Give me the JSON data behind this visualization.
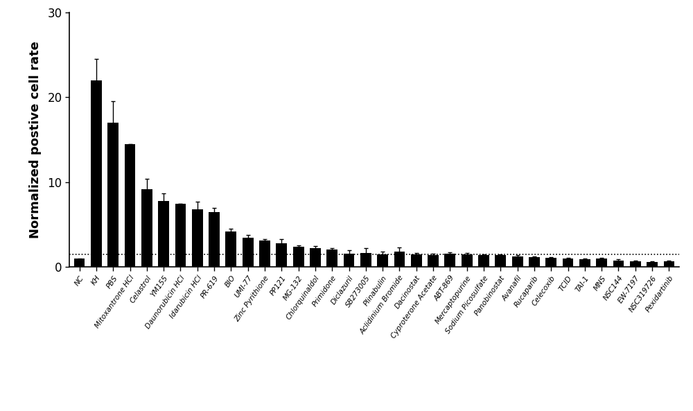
{
  "categories": [
    "NC",
    "KH",
    "PBS",
    "Mitoxantrone HCl",
    "Celastrol",
    "YM155",
    "Daunorubicin HCl",
    "Idarubicin HCl",
    "PR-619",
    "BIO",
    "UMI-77",
    "Zinc Pyrithione",
    "PP121",
    "MG-132",
    "Chlorquinaldol",
    "Primidone",
    "Diclazuril",
    "SB273005",
    "Plinabulin",
    "Aclidinium Bromide",
    "Dacinostat",
    "Cyproterone Acetate",
    "ABT-869",
    "Mercaptopurine",
    "Sodium Picosulfate",
    "Panobinostat",
    "Avanafil",
    "Rucaparib",
    "Celecoxib",
    "TCID",
    "TAI-1",
    "MNS",
    "NSC144",
    "EW-7197",
    "NSC319726",
    "Pexidartinib"
  ],
  "values": [
    1.0,
    22.0,
    17.0,
    14.5,
    9.2,
    7.8,
    7.5,
    6.8,
    6.5,
    4.2,
    3.5,
    3.1,
    2.8,
    2.4,
    2.2,
    2.1,
    1.6,
    1.7,
    1.5,
    1.8,
    1.5,
    1.4,
    1.6,
    1.5,
    1.4,
    1.4,
    1.3,
    1.2,
    1.1,
    1.0,
    0.9,
    1.0,
    0.8,
    0.7,
    0.6,
    0.7
  ],
  "errors": [
    0.05,
    2.5,
    2.5,
    0.0,
    1.2,
    0.9,
    0.0,
    0.9,
    0.5,
    0.3,
    0.25,
    0.2,
    0.5,
    0.15,
    0.3,
    0.15,
    0.4,
    0.5,
    0.3,
    0.5,
    0.2,
    0.15,
    0.15,
    0.15,
    0.1,
    0.1,
    0.1,
    0.1,
    0.1,
    0.1,
    0.1,
    0.1,
    0.1,
    0.1,
    0.1,
    0.1
  ],
  "bar_color": "#000000",
  "background_color": "#ffffff",
  "ylabel": "Normalized postive cell rate",
  "ylim": [
    0,
    30
  ],
  "yticks": [
    0,
    10,
    20,
    30
  ],
  "dotted_line_y": 1.5,
  "figsize": [
    10.0,
    5.93
  ],
  "dpi": 100
}
